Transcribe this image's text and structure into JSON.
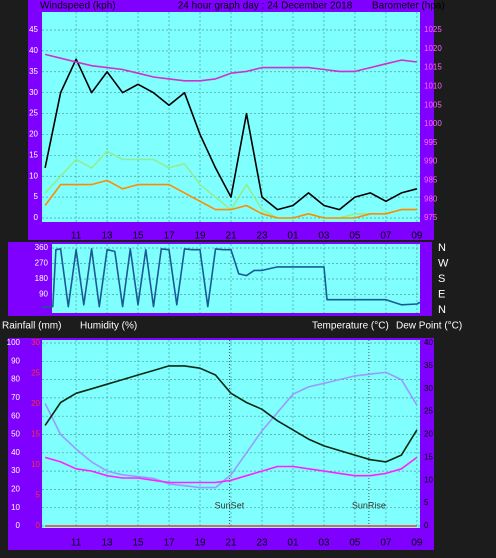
{
  "chart_data": [
    {
      "type": "line",
      "y_label": "Windspeed (kph)",
      "title": "24 hour graph day : 24 December 2018",
      "y2_label": "Barometer (hpa)",
      "x": [
        9,
        10,
        11,
        12,
        13,
        14,
        15,
        16,
        17,
        18,
        19,
        20,
        21,
        22,
        23,
        24,
        25,
        26,
        27,
        28,
        29,
        30,
        31,
        32,
        33
      ],
      "xlim": [
        8.8,
        33.2
      ],
      "xticks": [
        11,
        13,
        15,
        17,
        19,
        21,
        23,
        {
          "value": 25,
          "label": "01"
        },
        {
          "value": 27,
          "label": "03"
        },
        {
          "value": 29,
          "label": "05"
        },
        {
          "value": 31,
          "label": "07"
        },
        {
          "value": 33,
          "label": "09"
        }
      ],
      "ylim": [
        0,
        45
      ],
      "yticks": [
        0,
        5,
        10,
        15,
        20,
        25,
        30,
        35,
        40,
        45
      ],
      "y2lim": [
        975,
        1025
      ],
      "y2ticks": [
        975,
        980,
        985,
        990,
        995,
        1000,
        1005,
        1010,
        1015,
        1020,
        1025
      ],
      "grid": true,
      "series": [
        {
          "color": "#000000",
          "values": [
            12,
            30,
            38,
            30,
            35,
            30,
            32,
            30,
            27,
            30,
            20,
            12,
            5,
            25,
            5,
            2,
            3,
            6,
            3,
            2,
            5,
            6,
            4,
            6,
            7
          ]
        },
        {
          "color": "#90ee90",
          "values": [
            6,
            10,
            14,
            12,
            16,
            14,
            14,
            14,
            12,
            13,
            8,
            5,
            2,
            8,
            2,
            0,
            0,
            1,
            0,
            0,
            1,
            1,
            1,
            2,
            2
          ]
        },
        {
          "color": "#ff8c00",
          "values": [
            3,
            8,
            8,
            8,
            9,
            7,
            8,
            8,
            8,
            6,
            4,
            2,
            2,
            3,
            1,
            0,
            0,
            1,
            0,
            0,
            0,
            1,
            1,
            2,
            2
          ]
        },
        {
          "color": "#cc33cc",
          "axis": "y2",
          "values": [
            1018.5,
            1017.5,
            1016.5,
            1015.5,
            1015,
            1014.5,
            1013.5,
            1012.5,
            1012,
            1011.5,
            1011.5,
            1012,
            1013.5,
            1014,
            1015,
            1015,
            1015,
            1015,
            1014.5,
            1014,
            1014,
            1015,
            1016,
            1017,
            1016.5
          ]
        }
      ]
    },
    {
      "type": "line",
      "x": [
        8.8,
        9.5,
        9.7,
        10,
        10.5,
        11,
        11.5,
        12,
        12.5,
        13,
        13.5,
        14,
        14.5,
        15,
        15.5,
        16,
        16.5,
        17,
        17.5,
        18,
        18.5,
        19,
        19.5,
        20,
        20.5,
        21,
        21.5,
        22,
        22.5,
        23,
        24,
        26,
        27,
        27.2,
        29,
        31,
        32,
        33,
        33.2
      ],
      "xlim": [
        8.8,
        33.2
      ],
      "xticks": [
        11,
        13,
        15,
        17,
        19,
        21,
        23,
        25,
        27,
        29,
        31,
        33
      ],
      "ylim": [
        0,
        360
      ],
      "yticks": [
        90,
        180,
        270,
        360
      ],
      "y2lim": [
        0,
        360
      ],
      "y2ticks": [
        {
          "value": 360,
          "label": "N"
        },
        {
          "value": 270,
          "label": "W"
        },
        {
          "value": 180,
          "label": "S"
        },
        {
          "value": 90,
          "label": "E"
        },
        {
          "value": 0,
          "label": "N"
        }
      ],
      "grid": true,
      "series": [
        {
          "color": "#1a5a96",
          "values": [
            15,
            20,
            350,
            355,
            20,
            350,
            30,
            355,
            20,
            350,
            340,
            20,
            355,
            30,
            350,
            20,
            355,
            350,
            30,
            355,
            350,
            350,
            20,
            355,
            350,
            350,
            210,
            200,
            230,
            230,
            250,
            250,
            250,
            60,
            60,
            60,
            30,
            35,
            45
          ]
        }
      ]
    },
    {
      "type": "line",
      "y_labels": [
        "Rainfall (mm)",
        "Humidity (%)"
      ],
      "y2_labels": [
        "Temperature (°C)",
        "Dew Point (°C)"
      ],
      "x": [
        9,
        10,
        11,
        12,
        13,
        14,
        15,
        16,
        17,
        18,
        19,
        20,
        21,
        22,
        23,
        24,
        25,
        26,
        27,
        28,
        29,
        30,
        31,
        32,
        33
      ],
      "xlim": [
        8.8,
        33.2
      ],
      "xticks": [
        11,
        13,
        15,
        17,
        19,
        21,
        23,
        {
          "value": 25,
          "label": "01"
        },
        {
          "value": 27,
          "label": "03"
        },
        {
          "value": 29,
          "label": "05"
        },
        {
          "value": 31,
          "label": "07"
        },
        {
          "value": 33,
          "label": "09"
        }
      ],
      "ylim": [
        0,
        100
      ],
      "yticks": [
        0,
        10,
        20,
        30,
        40,
        50,
        60,
        70,
        80,
        90,
        100
      ],
      "y2lim": [
        0,
        40
      ],
      "y2ticks": [
        0,
        5,
        10,
        15,
        20,
        25,
        30,
        35,
        40
      ],
      "y3lim": [
        0,
        30
      ],
      "y3ticks": [
        0,
        5,
        10,
        15,
        20,
        25,
        30
      ],
      "grid": true,
      "annotations": [
        {
          "text": "SunSet",
          "x": 20.9
        },
        {
          "text": "SunRise",
          "x": 29.9
        }
      ],
      "series": [
        {
          "color": "#ff3030",
          "axis": "y3",
          "values": [
            0,
            0,
            0,
            0,
            0,
            0,
            0,
            0,
            0,
            0,
            0,
            0,
            0,
            0,
            0,
            0,
            0,
            0,
            0,
            0,
            0,
            0,
            0,
            0,
            0
          ]
        },
        {
          "color": "#9a9aff",
          "values": [
            67,
            50,
            42,
            35,
            30,
            28,
            27,
            26,
            23,
            22,
            21,
            21,
            28,
            40,
            52,
            62,
            72,
            76,
            78,
            80,
            82,
            83,
            84,
            80,
            66
          ]
        },
        {
          "color": "#ff22ff",
          "axis": "y2",
          "values": [
            15,
            14,
            12.5,
            12,
            11,
            10.5,
            10.5,
            10,
            9.5,
            9.5,
            9.5,
            9.5,
            10,
            11,
            12,
            13,
            13,
            12.5,
            12,
            11.5,
            11,
            11,
            11.5,
            12.5,
            15
          ]
        },
        {
          "color": "#0a2a12",
          "axis": "y2",
          "values": [
            22,
            27,
            29,
            30,
            31,
            32,
            33,
            34,
            35,
            35,
            34.5,
            33,
            29,
            27,
            25.5,
            23,
            21,
            19,
            17.5,
            16.5,
            15.5,
            14.5,
            14,
            15.5,
            21
          ]
        }
      ]
    }
  ]
}
